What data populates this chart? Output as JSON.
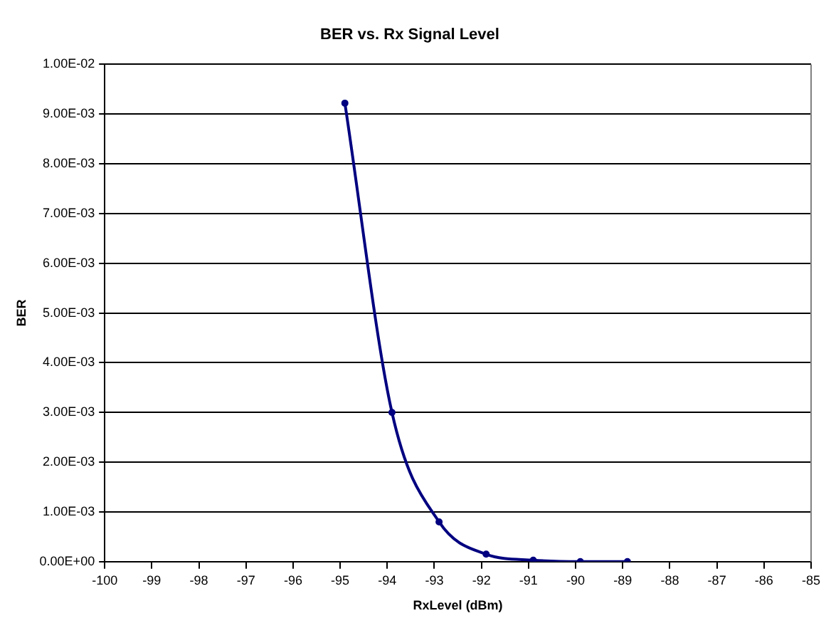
{
  "chart_data": {
    "type": "line",
    "title": "BER vs. Rx Signal Level",
    "xlabel": "RxLevel (dBm)",
    "ylabel": "BER",
    "x": [
      -94.9,
      -93.9,
      -92.9,
      -91.9,
      -90.9,
      -89.9,
      -88.9
    ],
    "series": [
      {
        "color": "#000080",
        "values": [
          0.00922,
          0.003,
          0.0008,
          0.00015,
          3e-05,
          0.0,
          0.0
        ]
      }
    ],
    "xlim": [
      -100,
      -85
    ],
    "xticks": [
      -100,
      -99,
      -98,
      -97,
      -96,
      -95,
      -94,
      -93,
      -92,
      -91,
      -90,
      -89,
      -88,
      -87,
      -86,
      -85
    ],
    "ylim": [
      0,
      0.01
    ],
    "yticks": [
      {
        "value": 0,
        "label": "0.00E+00"
      },
      {
        "value": 0.001,
        "label": "1.00E-03"
      },
      {
        "value": 0.002,
        "label": "2.00E-03"
      },
      {
        "value": 0.003,
        "label": "3.00E-03"
      },
      {
        "value": 0.004,
        "label": "4.00E-03"
      },
      {
        "value": 0.005,
        "label": "5.00E-03"
      },
      {
        "value": 0.006,
        "label": "6.00E-03"
      },
      {
        "value": 0.007,
        "label": "7.00E-03"
      },
      {
        "value": 0.008,
        "label": "8.00E-03"
      },
      {
        "value": 0.009,
        "label": "9.00E-03"
      },
      {
        "value": 0.01,
        "label": "1.00E-02"
      }
    ],
    "grid": "y",
    "legend": false,
    "marker": "circle",
    "line_style": "solid"
  }
}
